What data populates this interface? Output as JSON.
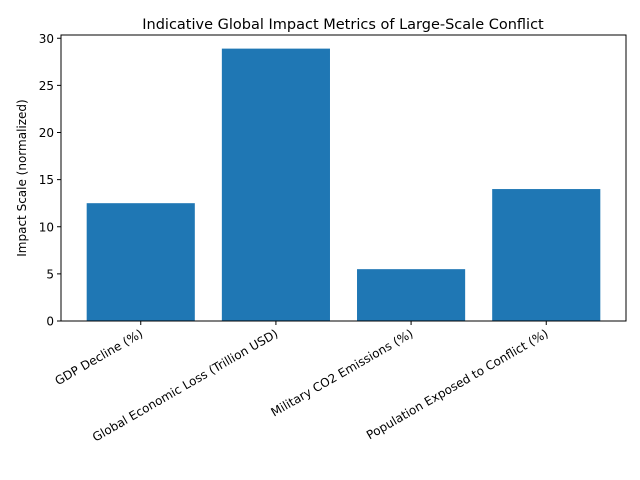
{
  "chart_data": {
    "type": "bar",
    "title": "Indicative Global Impact Metrics of Large-Scale Conflict",
    "xlabel": "",
    "ylabel": "Impact Scale (normalized)",
    "categories": [
      "GDP Decline (%)",
      "Global Economic Loss (Trillion USD)",
      "Military CO2 Emissions (%)",
      "Population Exposed to Conflict (%)"
    ],
    "values": [
      12.5,
      28.9,
      5.5,
      14.0
    ],
    "ylim": [
      0,
      30.345
    ],
    "yticks": [
      0,
      5,
      10,
      15,
      20,
      25,
      30
    ],
    "grid": false,
    "legend": "none",
    "bar_color": "#1f77b4"
  }
}
